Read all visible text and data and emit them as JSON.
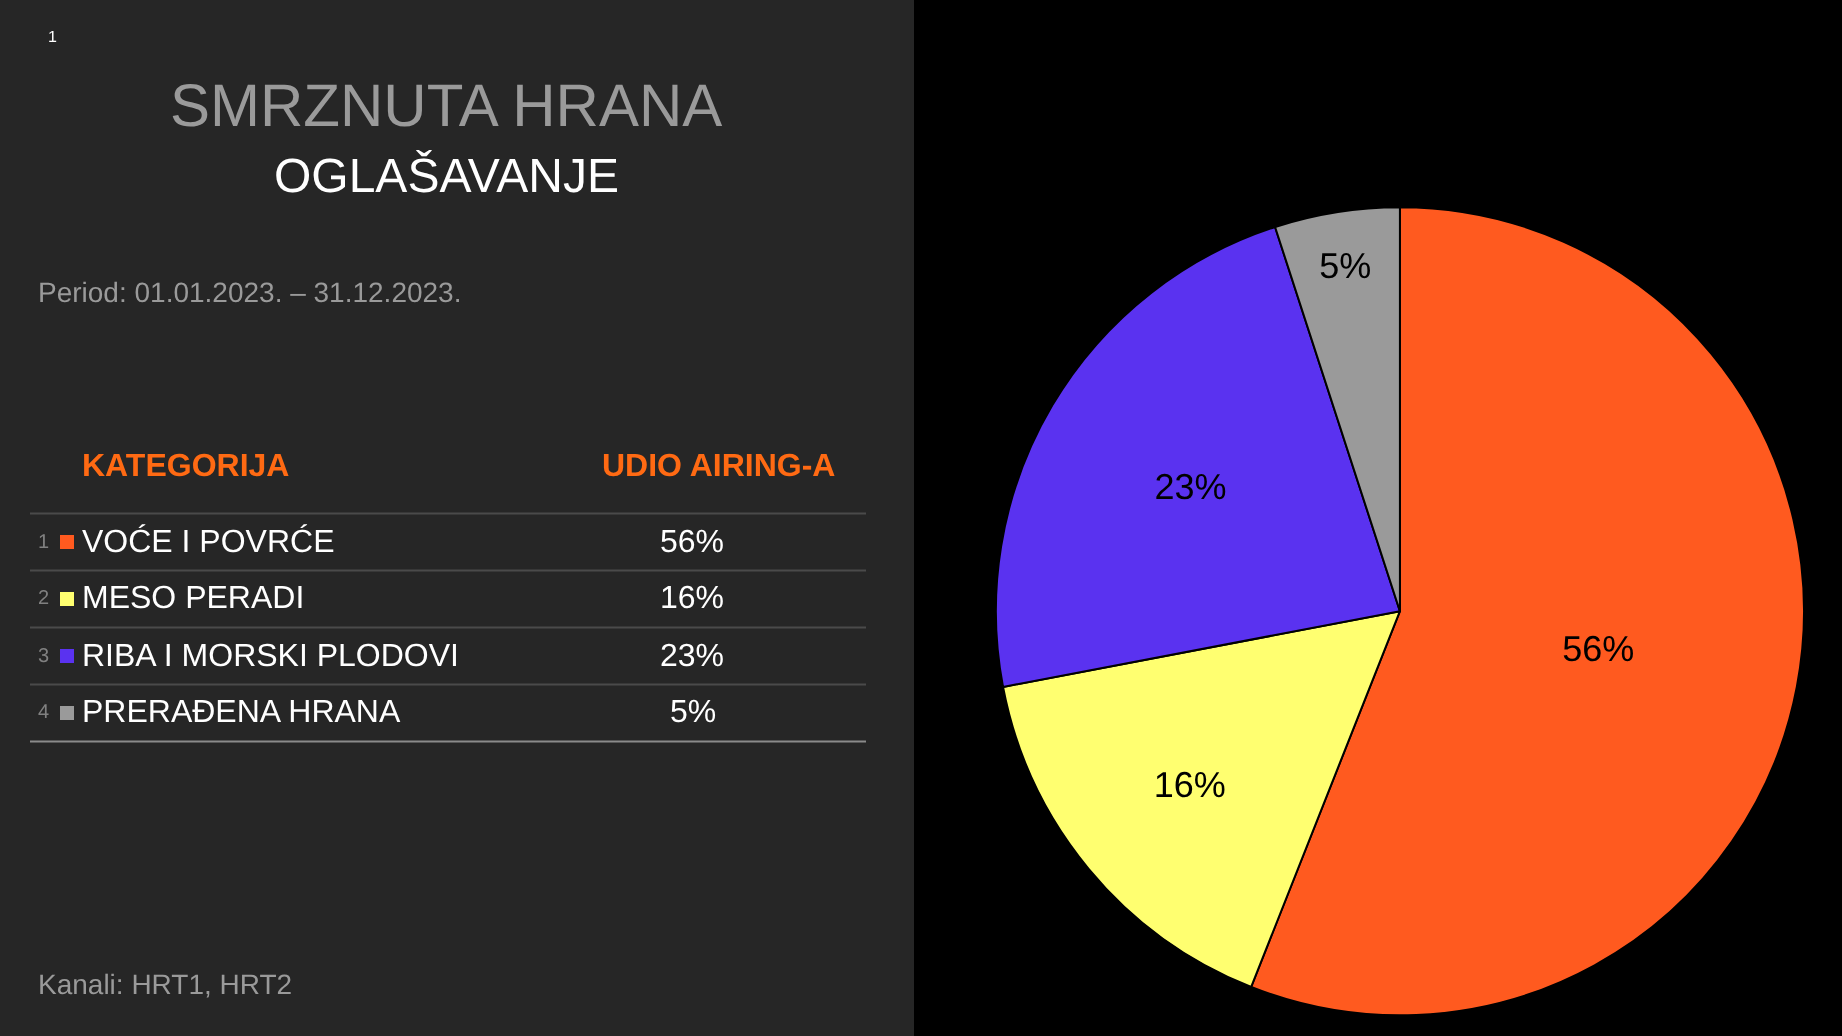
{
  "chart_data": {
    "type": "pie",
    "title": "SMRZNUTA HRANA",
    "subtitle": "OGLAŠAVANJE",
    "categories": [
      "VOĆE I POVRĆE",
      "MESO PERADI",
      "RIBA I MORSKI PLODOVI",
      "PRERAĐENA HRANA"
    ],
    "values": [
      56,
      16,
      23,
      5
    ],
    "colors": [
      "#ff5a1f",
      "#ffff70",
      "#5a32f0",
      "#9a9a9a"
    ],
    "value_labels": [
      "56%",
      "16%",
      "23%",
      "5%"
    ],
    "annotations": [
      "1",
      "Period: 01.01.2023. – 31.12.2023.",
      "KATEGORIJA",
      "UDIO AIRING-A",
      "Kanali: HRT1, HRT2",
      "1",
      "2",
      "3",
      "4"
    ],
    "legend": "left"
  }
}
